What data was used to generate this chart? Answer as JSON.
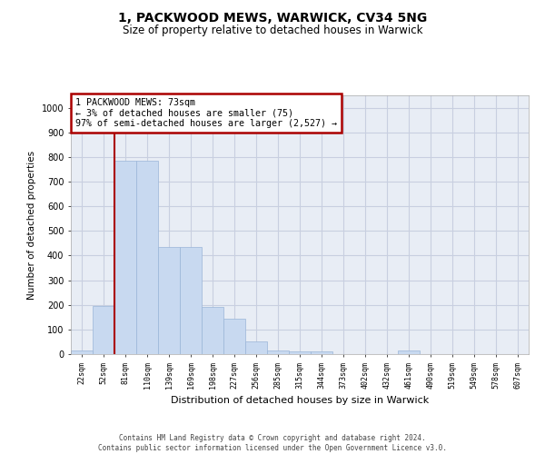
{
  "title1": "1, PACKWOOD MEWS, WARWICK, CV34 5NG",
  "title2": "Size of property relative to detached houses in Warwick",
  "xlabel": "Distribution of detached houses by size in Warwick",
  "ylabel": "Number of detached properties",
  "categories": [
    "22sqm",
    "52sqm",
    "81sqm",
    "110sqm",
    "139sqm",
    "169sqm",
    "198sqm",
    "227sqm",
    "256sqm",
    "285sqm",
    "315sqm",
    "344sqm",
    "373sqm",
    "402sqm",
    "432sqm",
    "461sqm",
    "490sqm",
    "519sqm",
    "549sqm",
    "578sqm",
    "607sqm"
  ],
  "values": [
    15,
    195,
    783,
    783,
    435,
    435,
    190,
    145,
    50,
    15,
    12,
    10,
    0,
    0,
    0,
    13,
    0,
    0,
    0,
    0,
    0
  ],
  "bar_color": "#c8d9f0",
  "bar_edge_color": "#9ab5d8",
  "vline_color": "#aa0000",
  "vline_x": 1.5,
  "annotation_text": "1 PACKWOOD MEWS: 73sqm\n← 3% of detached houses are smaller (75)\n97% of semi-detached houses are larger (2,527) →",
  "annotation_box_facecolor": "#ffffff",
  "annotation_box_edgecolor": "#aa0000",
  "ylim": [
    0,
    1050
  ],
  "yticks": [
    0,
    100,
    200,
    300,
    400,
    500,
    600,
    700,
    800,
    900,
    1000
  ],
  "grid_color": "#c8cfe0",
  "bg_color": "#e8edf5",
  "footer1": "Contains HM Land Registry data © Crown copyright and database right 2024.",
  "footer2": "Contains public sector information licensed under the Open Government Licence v3.0."
}
